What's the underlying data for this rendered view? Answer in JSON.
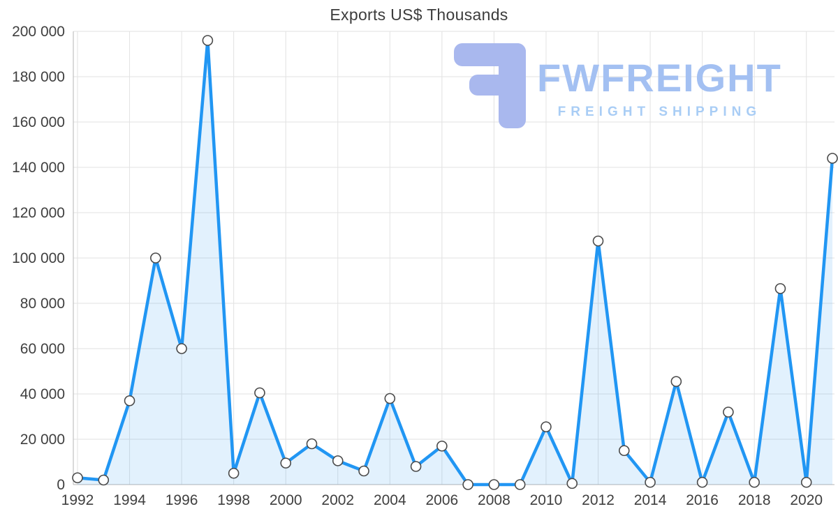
{
  "title": "Exports US$ Thousands",
  "watermark": {
    "brand": "FWFREIGHT",
    "tagline": "FREIGHT SHIPPING"
  },
  "colors": {
    "accent_line": "#2196f3",
    "area_fill": "#2196f3",
    "grid": "#e2e2e2",
    "axis": "#b5b5b5",
    "tick_text": "#3f3f3f",
    "title_text": "#3c3c3c",
    "marker_fill": "#ffffff",
    "marker_stroke": "#4a4a4a",
    "logo_icon": "#a9b8ee",
    "logo_text": "#a3c0f2",
    "logo_tagline": "#a9cdf5"
  },
  "chart_data": {
    "type": "area",
    "title": "Exports US$ Thousands",
    "xlabel": "",
    "ylabel": "",
    "grid": true,
    "legend": false,
    "marker": "circle",
    "x": [
      1992,
      1993,
      1994,
      1995,
      1996,
      1997,
      1998,
      1999,
      2000,
      2001,
      2002,
      2003,
      2004,
      2005,
      2006,
      2007,
      2008,
      2009,
      2010,
      2011,
      2012,
      2013,
      2014,
      2015,
      2016,
      2017,
      2018,
      2019,
      2020,
      2021
    ],
    "values": [
      3000,
      2000,
      37000,
      100000,
      60000,
      196000,
      5000,
      40500,
      9500,
      18000,
      10500,
      6000,
      38000,
      8000,
      17000,
      0,
      0,
      0,
      25500,
      500,
      107500,
      15000,
      1000,
      45500,
      1000,
      32000,
      1000,
      86500,
      1000,
      144000
    ],
    "ylim": [
      0,
      200000
    ],
    "yticks": {
      "values": [
        0,
        20000,
        40000,
        60000,
        80000,
        100000,
        120000,
        140000,
        160000,
        180000,
        200000
      ],
      "labels": [
        "0",
        "20 000",
        "40 000",
        "60 000",
        "80 000",
        "100 000",
        "120 000",
        "140 000",
        "160 000",
        "180 000",
        "200 000"
      ]
    },
    "xticks": {
      "values": [
        1992,
        1994,
        1996,
        1998,
        2000,
        2002,
        2004,
        2006,
        2008,
        2010,
        2012,
        2014,
        2016,
        2018,
        2020
      ],
      "labels": [
        "1992",
        "1994",
        "1996",
        "1998",
        "2000",
        "2002",
        "2004",
        "2006",
        "2008",
        "2010",
        "2012",
        "2014",
        "2016",
        "2018",
        "2020"
      ]
    }
  }
}
